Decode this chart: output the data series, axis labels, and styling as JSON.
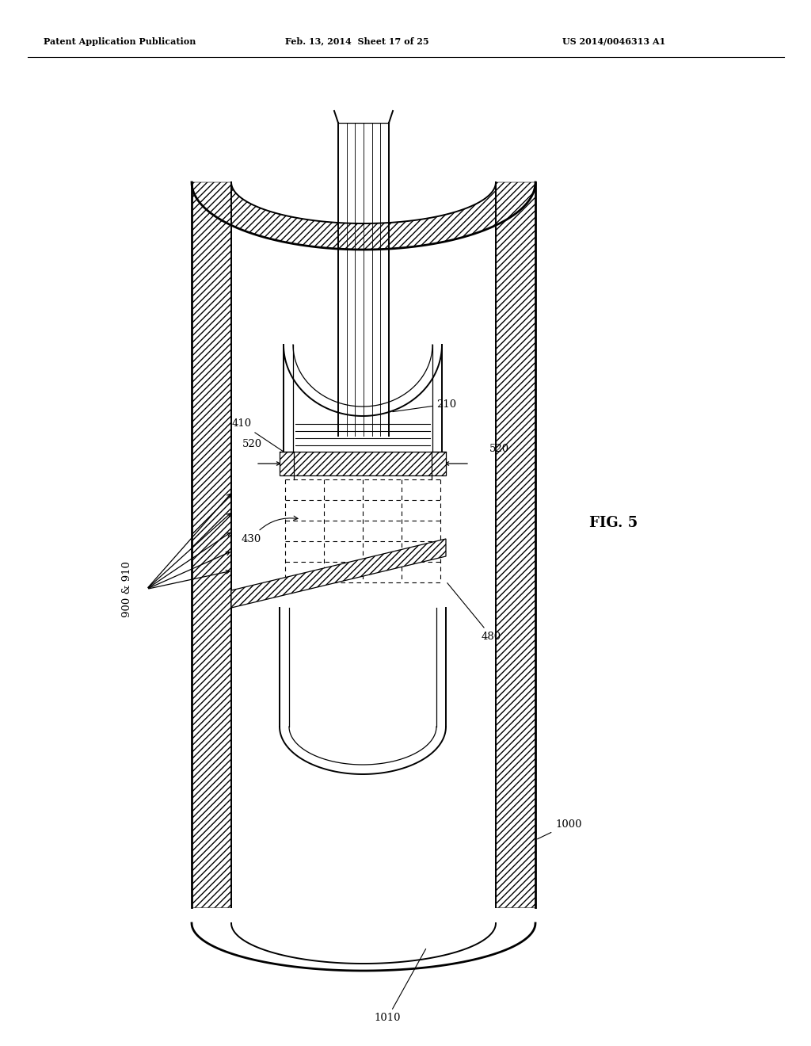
{
  "bg": "#ffffff",
  "lc": "#000000",
  "header_left": "Patent Application Publication",
  "header_mid": "Feb. 13, 2014  Sheet 17 of 25",
  "header_right": "US 2014/0046313 A1",
  "fig_label": "FIG. 5",
  "label_210": "210",
  "label_410": "410",
  "label_430": "430",
  "label_520": "520",
  "label_480": "480",
  "label_900_910": "900 & 910",
  "label_1000": "1000",
  "label_1010": "1010"
}
